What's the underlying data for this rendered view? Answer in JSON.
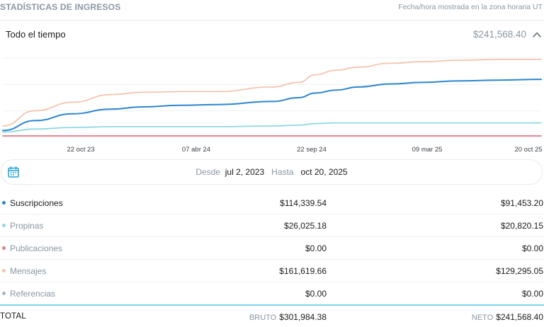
{
  "header": {
    "title": "STADÍSTICAS DE INGRESOS",
    "timezone_note": "Fecha/hora mostrada en la zona horaria UT"
  },
  "period": {
    "label": "Todo el tiempo",
    "total": "$241,568.40",
    "expand_icon": "chevron-up-icon"
  },
  "chart_data": {
    "type": "line",
    "x_tick_labels": [
      "22 oct 23",
      "07 abr 24",
      "22 sep 24",
      "09 mar 25",
      "20 oct 25"
    ],
    "grid": true,
    "series": [
      {
        "color": "#f5c4b0",
        "x": [
          0,
          0.06,
          0.13,
          0.2,
          0.26,
          0.33,
          0.4,
          0.5,
          0.55,
          0.58,
          0.62,
          0.66,
          0.72,
          0.78,
          0.85,
          0.92,
          1.0
        ],
        "values": [
          0.13,
          0.33,
          0.44,
          0.54,
          0.57,
          0.58,
          0.58,
          0.64,
          0.7,
          0.8,
          0.86,
          0.9,
          0.95,
          0.97,
          0.99,
          1.0,
          1.0
        ]
      },
      {
        "color": "#2c86cf",
        "x": [
          0,
          0.06,
          0.13,
          0.2,
          0.26,
          0.33,
          0.4,
          0.5,
          0.55,
          0.58,
          0.62,
          0.66,
          0.72,
          0.78,
          0.85,
          0.92,
          1.0
        ],
        "values": [
          0.07,
          0.2,
          0.29,
          0.35,
          0.38,
          0.4,
          0.41,
          0.45,
          0.5,
          0.56,
          0.6,
          0.64,
          0.68,
          0.7,
          0.72,
          0.73,
          0.74
        ]
      },
      {
        "color": "#8fd8e4",
        "x": [
          0,
          0.06,
          0.13,
          0.2,
          0.26,
          0.33,
          0.4,
          0.5,
          0.55,
          0.58,
          0.62,
          0.66,
          0.72,
          0.78,
          0.85,
          0.92,
          1.0
        ],
        "values": [
          0.05,
          0.09,
          0.11,
          0.12,
          0.12,
          0.12,
          0.12,
          0.13,
          0.14,
          0.16,
          0.17,
          0.17,
          0.17,
          0.17,
          0.17,
          0.17,
          0.17
        ]
      },
      {
        "color": "#e07a87",
        "x": [
          0,
          1.0
        ],
        "values": [
          0.0,
          0.0
        ]
      }
    ]
  },
  "date_range": {
    "from_label": "Desde",
    "from_value": "jul 2, 2023",
    "to_label": "Hasta",
    "to_value": "oct 20, 2025"
  },
  "rows": [
    {
      "name": "Suscripciones",
      "gross": "$114,339.54",
      "net": "$91,453.20",
      "color": "#2c86cf",
      "dim": false
    },
    {
      "name": "Propinas",
      "gross": "$26,025.18",
      "net": "$20,820.15",
      "color": "#8fd8e4",
      "dim": true
    },
    {
      "name": "Publicaciones",
      "gross": "$0.00",
      "net": "$0.00",
      "color": "#e07a87",
      "dim": true
    },
    {
      "name": "Mensajes",
      "gross": "$161,619.66",
      "net": "$129,295.05",
      "color": "#f5c4b0",
      "dim": true
    },
    {
      "name": "Referencias",
      "gross": "$0.00",
      "net": "$0.00",
      "color": "#a9b4c7",
      "dim": true
    }
  ],
  "totals": {
    "label": "TOTAL",
    "gross_label": "BRUTO",
    "gross": "$301,984.38",
    "net_label": "NETO",
    "net": "$241,568.40"
  }
}
